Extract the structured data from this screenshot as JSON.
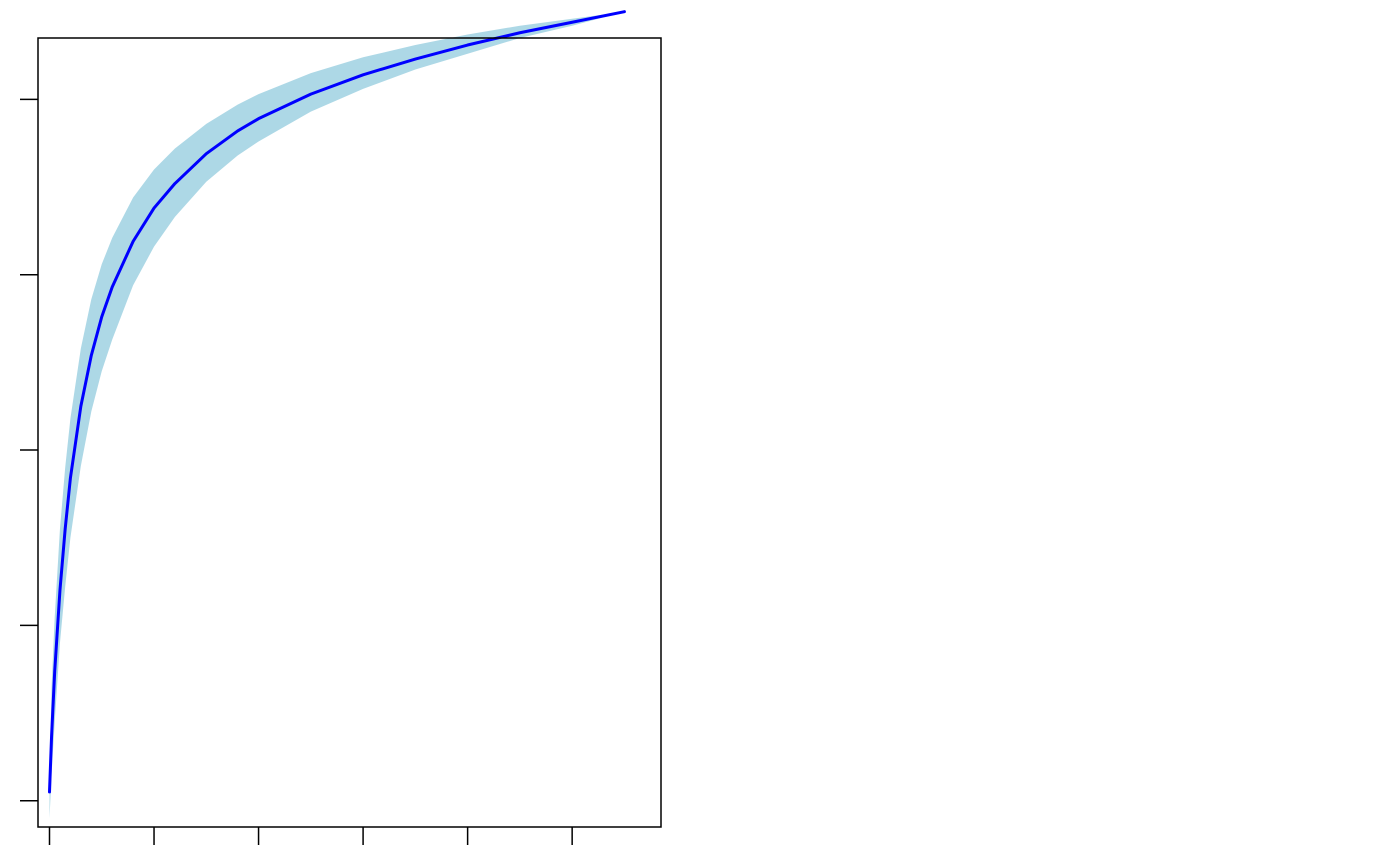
{
  "chart_data": {
    "type": "area",
    "title": "",
    "xlabel": "",
    "ylabel": "",
    "xlim": [
      -0.11,
      5.85
    ],
    "ylim": [
      -0.15,
      4.35
    ],
    "x_ticks": [
      0,
      1,
      2,
      3,
      4,
      5
    ],
    "y_ticks": [
      0,
      1,
      2,
      3,
      4
    ],
    "tick_labels_shown": false,
    "grid": false,
    "legend": "none",
    "colors": {
      "line": "#0000ff",
      "band": "#add8e6",
      "axis": "#000000",
      "background": "#ffffff"
    },
    "series": [
      {
        "kind": "line",
        "x": [
          0.0,
          0.02,
          0.05,
          0.1,
          0.15,
          0.2,
          0.3,
          0.4,
          0.5,
          0.6,
          0.8,
          1.0,
          1.2,
          1.5,
          1.8,
          2.0,
          2.5,
          3.0,
          3.5,
          4.0,
          4.5,
          5.0,
          5.5
        ],
        "y": [
          0.05,
          0.37,
          0.74,
          1.2,
          1.55,
          1.84,
          2.25,
          2.54,
          2.76,
          2.93,
          3.19,
          3.38,
          3.52,
          3.69,
          3.82,
          3.89,
          4.03,
          4.14,
          4.23,
          4.31,
          4.38,
          4.44,
          4.5
        ]
      },
      {
        "kind": "band",
        "x": [
          0.0,
          0.02,
          0.05,
          0.1,
          0.15,
          0.2,
          0.3,
          0.4,
          0.5,
          0.6,
          0.8,
          1.0,
          1.2,
          1.5,
          1.8,
          2.0,
          2.5,
          3.0,
          3.5,
          4.0,
          4.5,
          5.0,
          5.5
        ],
        "lower": [
          -0.1,
          0.15,
          0.45,
          0.9,
          1.22,
          1.5,
          1.91,
          2.22,
          2.45,
          2.63,
          2.94,
          3.16,
          3.33,
          3.53,
          3.68,
          3.76,
          3.93,
          4.06,
          4.17,
          4.26,
          4.35,
          4.42,
          4.5
        ],
        "upper": [
          0.15,
          0.65,
          1.05,
          1.55,
          1.9,
          2.18,
          2.58,
          2.86,
          3.06,
          3.21,
          3.44,
          3.6,
          3.72,
          3.86,
          3.97,
          4.03,
          4.15,
          4.24,
          4.31,
          4.37,
          4.42,
          4.46,
          4.5
        ]
      }
    ]
  }
}
